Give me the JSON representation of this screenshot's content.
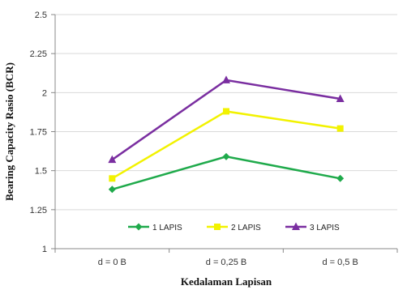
{
  "chart_data": {
    "type": "line",
    "categories": [
      "d = 0 B",
      "d = 0,25 B",
      "d = 0,5 B"
    ],
    "series": [
      {
        "name": "1 LAPIS",
        "values": [
          1.38,
          1.59,
          1.45
        ],
        "color": "#1faa4b",
        "marker": "diamond"
      },
      {
        "name": "2 LAPIS",
        "values": [
          1.45,
          1.88,
          1.77
        ],
        "color": "#f2f200",
        "marker": "square"
      },
      {
        "name": "3 LAPIS",
        "values": [
          1.57,
          2.08,
          1.96
        ],
        "color": "#7a2ea0",
        "marker": "triangle"
      }
    ],
    "xlabel": "Kedalaman Lapisan",
    "ylabel": "Bearing Capacity Rasio (BCR)",
    "ylim": [
      1,
      2.5
    ],
    "yticks": [
      "1",
      "1.25",
      "1.5",
      "1.75",
      "2",
      "2.25",
      "2.5"
    ],
    "grid": true,
    "legend_position": "inside-bottom"
  }
}
